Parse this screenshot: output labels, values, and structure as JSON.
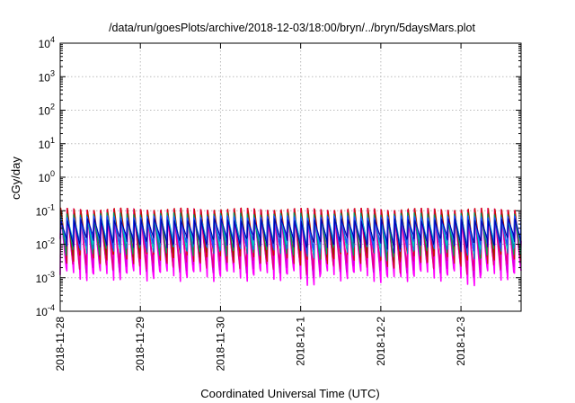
{
  "chart_data": {
    "type": "line",
    "title": "/data/run/goesPlots/archive/2018-12-03/18:00/bryn/../bryn/5daysMars.plot",
    "xlabel": "Coordinated Universal Time (UTC)",
    "ylabel": "cGy/day",
    "x_tick_labels": [
      "2018-11-28",
      "2018-11-29",
      "2018-11-30",
      "2018-12-1",
      "2018-12-2",
      "2018-12-3"
    ],
    "y_scale": "log",
    "y_tick_labels": [
      {
        "base": "10",
        "exp": "4"
      },
      {
        "base": "10",
        "exp": "3"
      },
      {
        "base": "10",
        "exp": "2"
      },
      {
        "base": "10",
        "exp": "1"
      },
      {
        "base": "10",
        "exp": "0"
      },
      {
        "base": "10",
        "exp": "-1"
      },
      {
        "base": "10",
        "exp": "-2"
      },
      {
        "base": "10",
        "exp": "-3"
      },
      {
        "base": "10",
        "exp": "-4"
      }
    ],
    "ylim": [
      0.0001,
      10000
    ],
    "xlim": [
      "2018-11-28 00:00",
      "2018-12-03 18:00"
    ],
    "grid": true,
    "legend": "none",
    "series_colors": [
      "#ff00ff",
      "#dd00dd",
      "#e8007a",
      "#cc1100",
      "#8b2b00",
      "#00a060",
      "#0088cc",
      "#00cccc",
      "#2244ff",
      "#0000aa"
    ],
    "series_shape": {
      "peaks_per_day": 12,
      "per_series_peak": [
        0.1,
        0.095,
        0.11,
        0.12,
        0.1,
        0.08,
        0.07,
        0.06,
        0.065,
        0.055
      ],
      "per_series_trough": [
        0.0012,
        0.0016,
        0.0025,
        0.004,
        0.005,
        0.0065,
        0.008,
        0.01,
        0.011,
        0.012
      ],
      "dip_window": [
        "2018-12-01 00:00",
        "2018-12-03 18:00"
      ]
    }
  }
}
